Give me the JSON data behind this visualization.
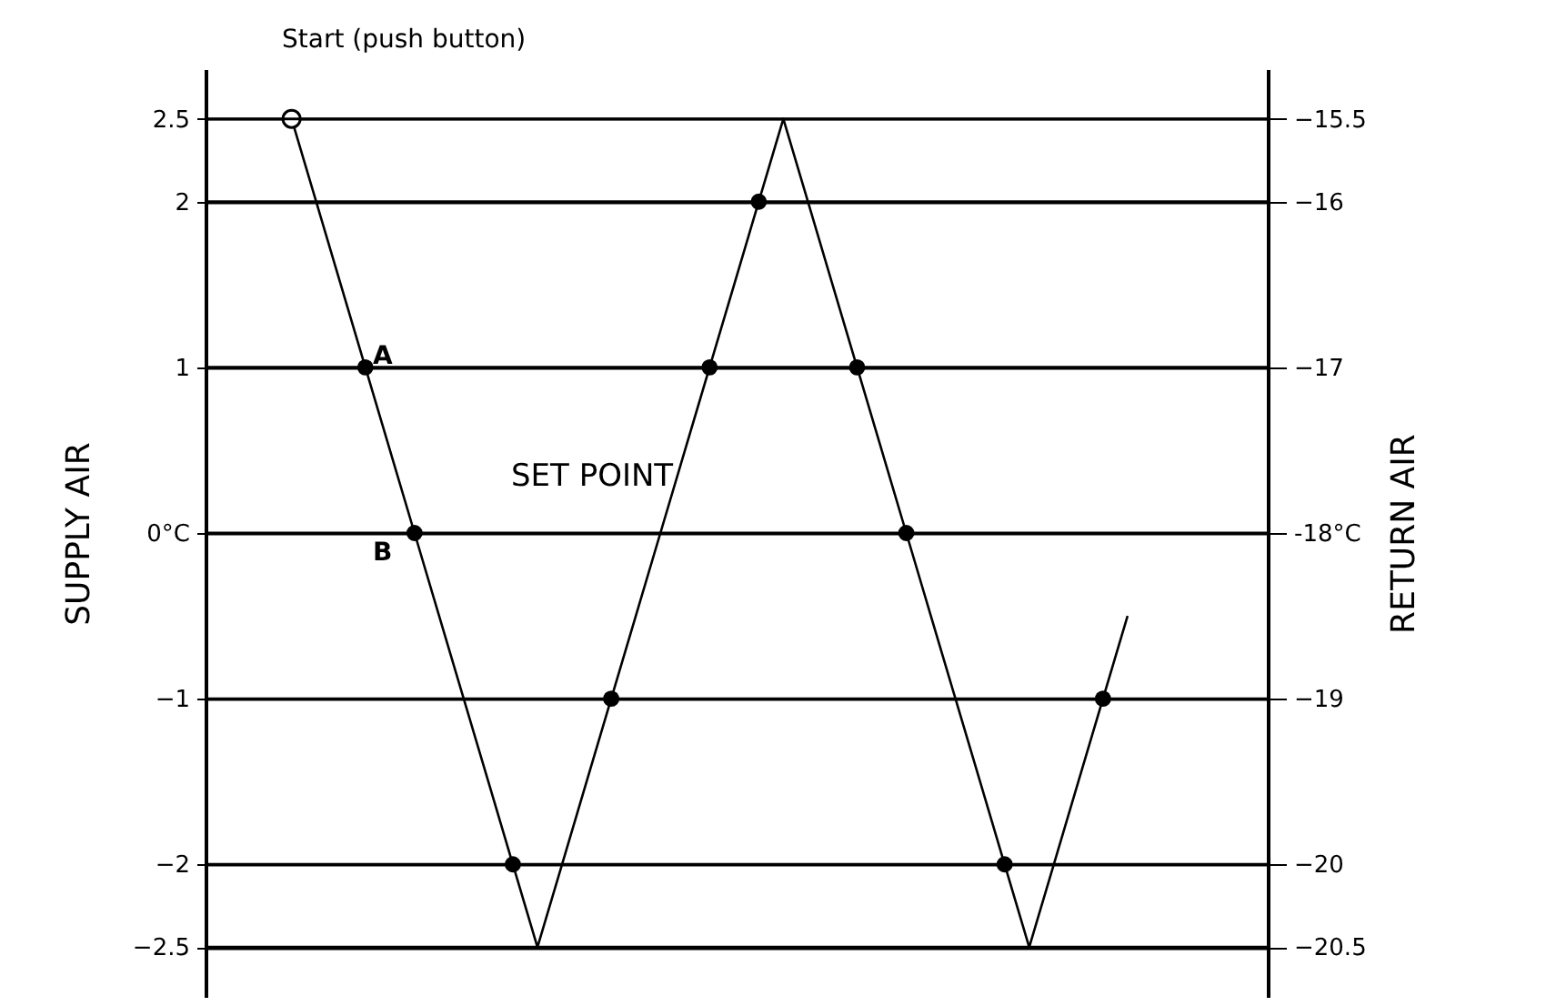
{
  "chart_data": {
    "type": "line",
    "ylabel": "SUPPLY AIR",
    "y2label": "RETURN AIR",
    "categories": [
      null,
      null,
      null,
      null,
      null,
      null,
      null,
      null,
      null,
      null,
      null,
      null,
      null,
      null,
      null,
      null,
      null,
      null,
      null,
      null,
      null,
      null,
      null,
      null,
      null,
      null,
      null,
      null,
      null,
      null,
      null,
      null,
      null,
      null,
      null
    ],
    "series": [
      {
        "color": "#000000",
        "marker": "none",
        "line_style": "solid",
        "values": [
          2.5,
          2,
          1.5,
          1,
          0.5,
          0,
          -0.5,
          -1,
          -1.5,
          -2,
          -2.5,
          -2,
          -1.5,
          -1,
          -0.5,
          0,
          0.5,
          1,
          1.5,
          2,
          2.5,
          2,
          1.5,
          1,
          0.5,
          0,
          -0.5,
          -1,
          -1.5,
          -2,
          -2.5,
          -2,
          -1.5,
          -1,
          -0.5
        ]
      },
      {
        "type": "scatter",
        "color": "#000000",
        "marker": "circle",
        "values": [
          null,
          null,
          null,
          1,
          null,
          0,
          null,
          null,
          null,
          -2,
          null,
          null,
          null,
          -1,
          null,
          null,
          null,
          1,
          null,
          2,
          null,
          null,
          null,
          1,
          null,
          0,
          null,
          null,
          null,
          -2,
          null,
          null,
          null,
          -1,
          null
        ]
      },
      {
        "type": "scatter",
        "color": "#ffffff",
        "marker": "circle",
        "values": [
          2.5,
          null,
          null,
          null,
          null,
          null,
          null,
          null,
          null,
          null,
          null,
          null,
          null,
          null,
          null,
          null,
          null,
          null,
          null,
          null,
          null,
          null,
          null,
          null,
          null,
          null,
          null,
          null,
          null,
          null,
          null,
          null,
          null,
          null,
          null
        ]
      }
    ],
    "ylim": [
      -2.8,
      2.8
    ],
    "yticks": [
      2.5,
      2,
      1,
      {
        "value": 0,
        "label": "0°C"
      },
      -1,
      -2,
      -2.5
    ],
    "y2lim": [
      -20.8,
      -15.2
    ],
    "y2ticks": [
      -15.5,
      -16,
      -17,
      {
        "value": -18,
        "label": "-18°C"
      },
      -19,
      -20,
      -20.5
    ],
    "grid": "y",
    "annotations": [
      "Start (push button)",
      "A",
      "B",
      "SET POINT"
    ]
  }
}
